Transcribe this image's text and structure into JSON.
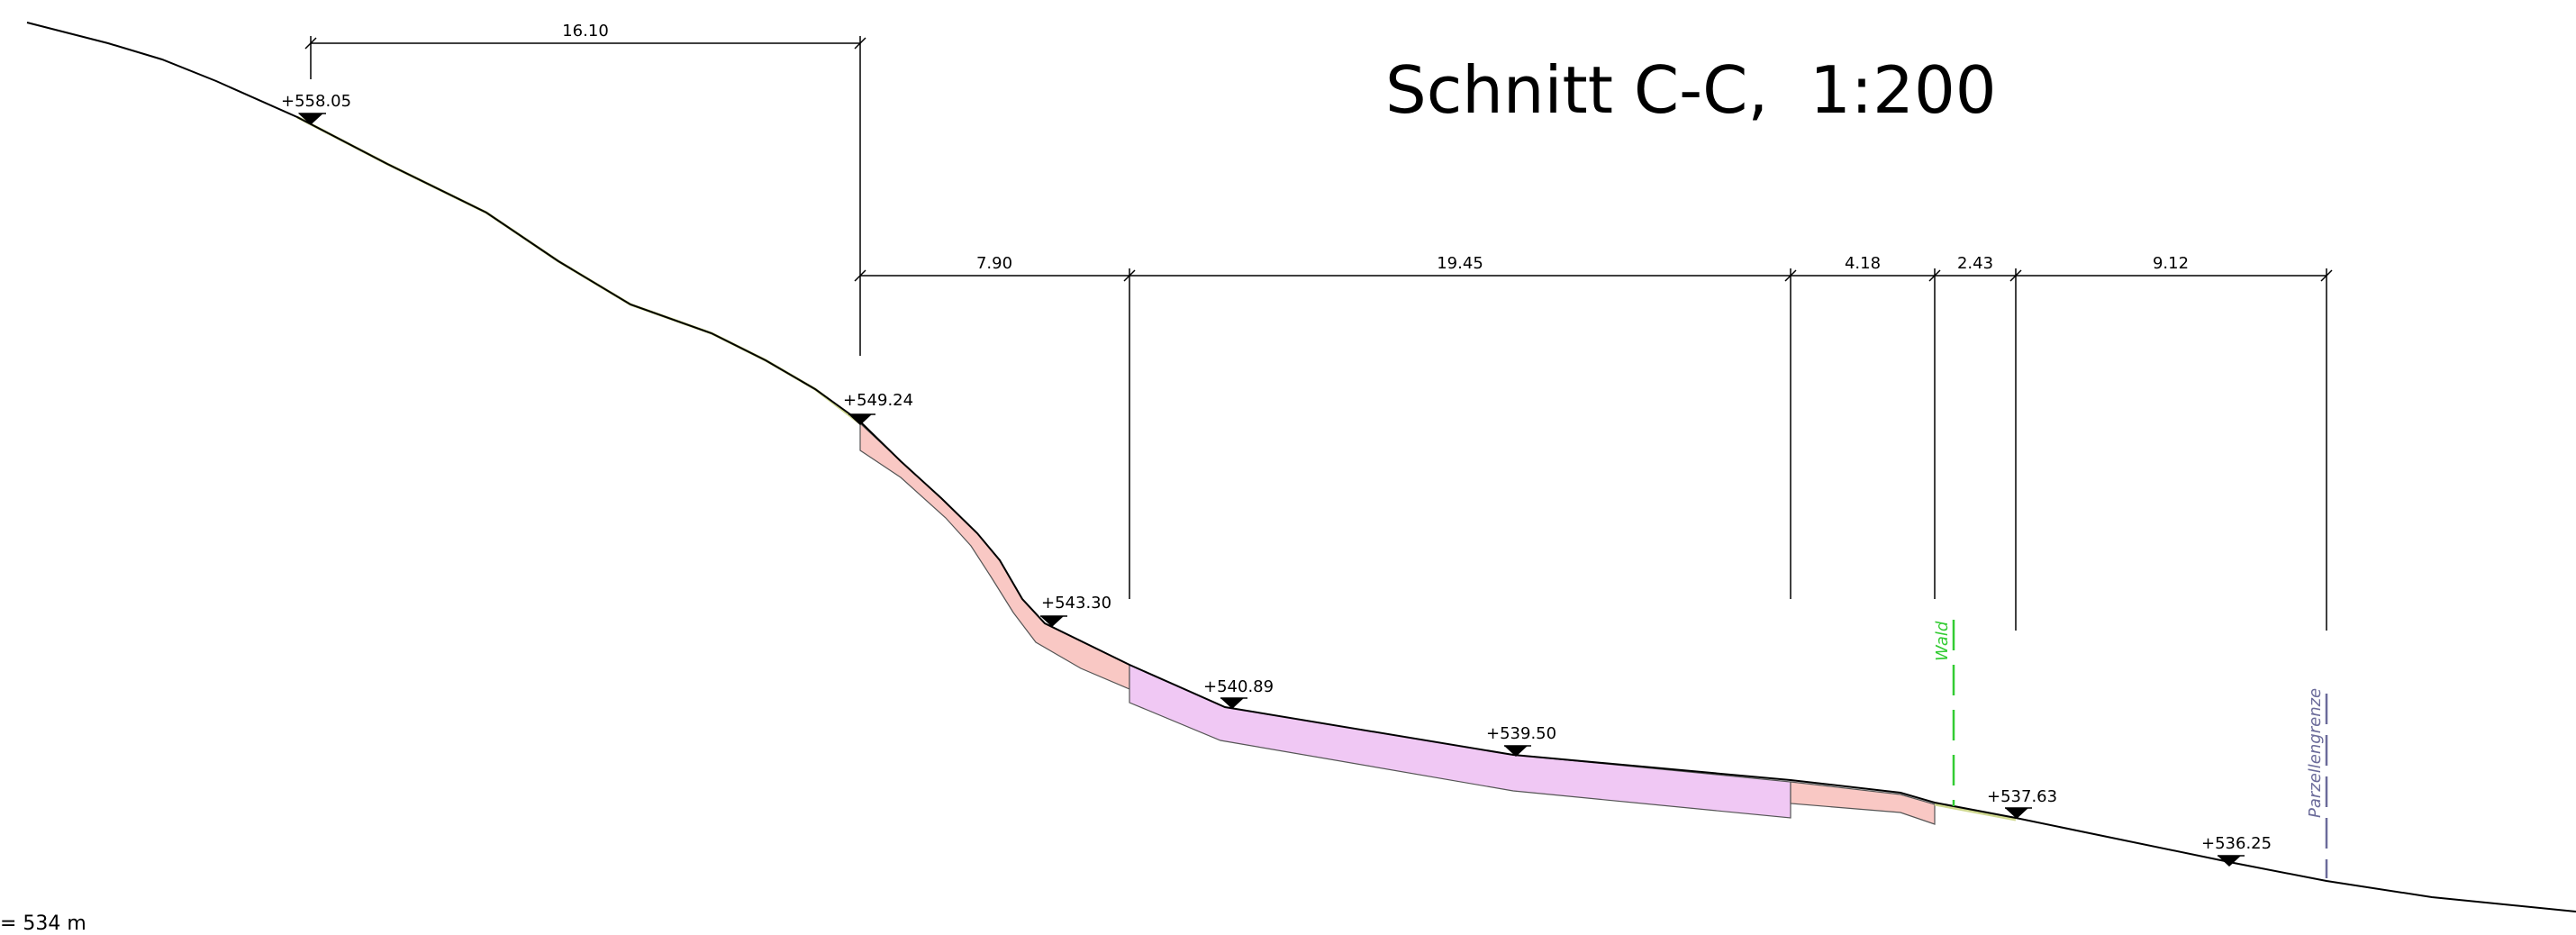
{
  "title": "Schnitt C-C,  1:200",
  "reference_note": "= 534 m",
  "dimensions": {
    "top": "16.10",
    "d1": "7.90",
    "d2": "19.45",
    "d3": "4.18",
    "d4": "2.43",
    "d5": "9.12"
  },
  "elevations": {
    "e1": "+558.05",
    "e2": "+549.24",
    "e3": "+543.30",
    "e4": "+540.89",
    "e5": "+539.50",
    "e6": "+537.63",
    "e7": "+536.25"
  },
  "labels": {
    "forest": "Wald",
    "parcel_boundary": "Parzellengrenze"
  },
  "colors": {
    "fill_pink": "#f9c8c4",
    "fill_violet": "#f0c8f4",
    "terrain_line": "#000000",
    "forest_line": "#33cc33",
    "parcel_line": "#6b6b9a"
  }
}
